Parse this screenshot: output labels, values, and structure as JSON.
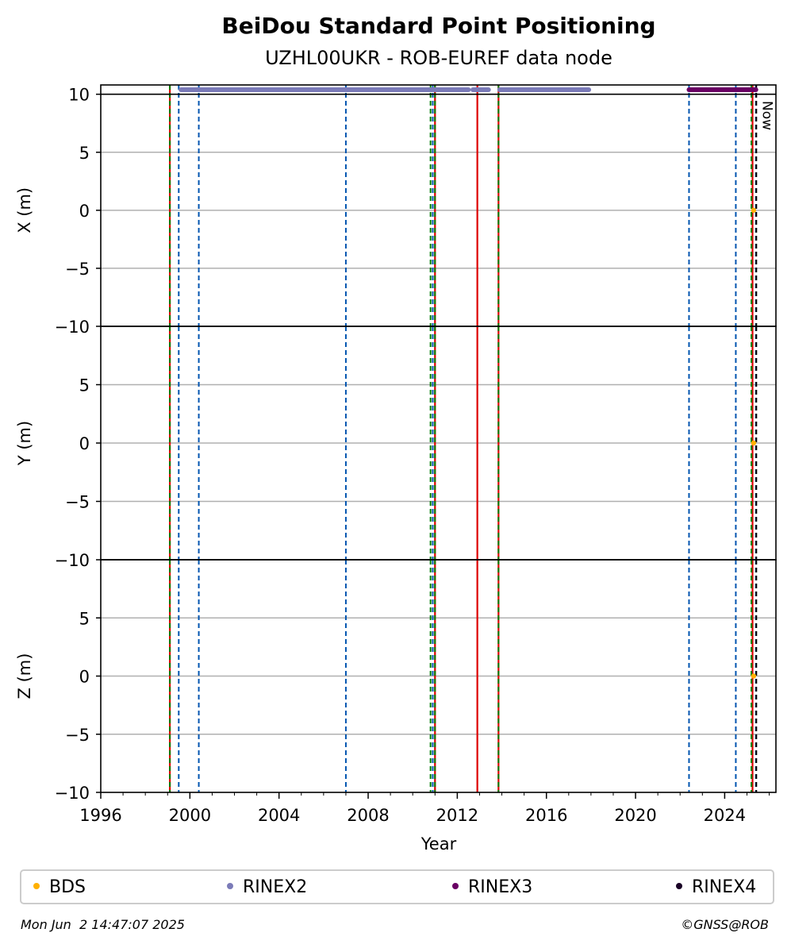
{
  "title": "BeiDou Standard Point Positioning",
  "subtitle": "UZHL00UKR - ROB-EUREF data node",
  "footer_left": "Mon Jun  2 14:47:07 2025",
  "footer_right": "©GNSS@ROB",
  "now_label": "Now",
  "colors": {
    "bds": "#ffb000",
    "rinex2": "#7b7bb8",
    "rinex3": "#6a0064",
    "rinex4": "#1a0026",
    "blue_dashed": "#0055b0",
    "green_dashed": "#008000",
    "red": "#dd0000",
    "grid": "#b0b0b0"
  },
  "chart_data": {
    "type": "scatter",
    "xlabel": "Year",
    "xlim": [
      1996,
      2026.3
    ],
    "x_ticks": [
      1996,
      2000,
      2004,
      2008,
      2012,
      2016,
      2020,
      2024
    ],
    "x_tick_labels": [
      "1996",
      "2000",
      "2004",
      "2008",
      "2012",
      "2016",
      "2020",
      "2024"
    ],
    "panels": [
      {
        "ylabel": "X (m)",
        "ylim": [
          -10,
          10.8
        ],
        "yticks": [
          10,
          5,
          0,
          -5,
          -10
        ],
        "ytick_labels": [
          "10",
          "5",
          "0",
          "−5",
          "−10"
        ],
        "bds_points": [
          [
            2025.3,
            0
          ]
        ]
      },
      {
        "ylabel": "Y (m)",
        "ylim": [
          -10,
          10
        ],
        "yticks": [
          5,
          0,
          -5,
          -10
        ],
        "ytick_labels": [
          "5",
          "0",
          "−5",
          "−10"
        ],
        "bds_points": [
          [
            2025.3,
            0
          ]
        ]
      },
      {
        "ylabel": "Z (m)",
        "ylim": [
          -10,
          10
        ],
        "yticks": [
          5,
          0,
          -5,
          -10
        ],
        "ytick_labels": [
          "5",
          "0",
          "−5",
          "−10"
        ],
        "bds_points": [
          [
            2025.3,
            0
          ]
        ]
      }
    ],
    "data_availability": {
      "rinex2": [
        [
          1999.6,
          2012.5
        ],
        [
          2012.7,
          2013.4
        ],
        [
          2013.9,
          2017.9
        ]
      ],
      "rinex3": [
        [
          2022.4,
          2025.4
        ]
      ]
    },
    "events": {
      "blue_dashed": [
        1999.5,
        2000.4,
        2007.0,
        2010.9,
        2022.4,
        2024.5,
        2025.4
      ],
      "green_dashed": [
        1999.1,
        2010.8,
        2011.0,
        2013.85,
        2025.2
      ],
      "red_solid": [
        1999.1,
        2011.0,
        2012.9,
        2013.85,
        2025.25
      ],
      "now": 2025.42
    },
    "legend": {
      "placement": "bottom",
      "entries": [
        {
          "name": "BDS",
          "color": "#ffb000"
        },
        {
          "name": "RINEX2",
          "color": "#7b7bb8"
        },
        {
          "name": "RINEX3",
          "color": "#6a0064"
        },
        {
          "name": "RINEX4",
          "color": "#1a0026"
        }
      ]
    }
  }
}
